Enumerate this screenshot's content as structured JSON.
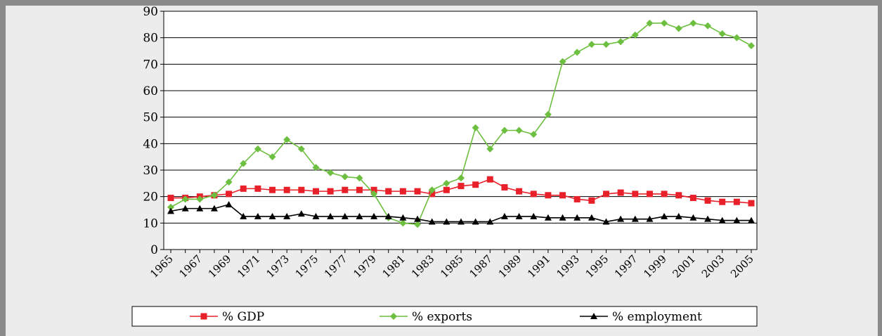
{
  "chart_data": {
    "type": "line",
    "categories": [
      "1965",
      null,
      "1967",
      null,
      "1969",
      null,
      "1971",
      null,
      "1973",
      null,
      "1975",
      null,
      "1977",
      null,
      "1979",
      null,
      "1981",
      null,
      "1983",
      null,
      "1985",
      null,
      "1987",
      null,
      "1989",
      null,
      "1991",
      null,
      "1993",
      null,
      "1995",
      null,
      "1997",
      null,
      "1999",
      null,
      "2001",
      null,
      "2003",
      null,
      "2005"
    ],
    "series": [
      {
        "name": "% GDP",
        "color": "#e8202a",
        "marker": "square",
        "values": [
          19.5,
          19.5,
          20,
          20.5,
          21,
          23,
          23,
          22.5,
          22.5,
          22.5,
          22,
          22,
          22.5,
          22.5,
          22.5,
          22,
          22,
          22,
          21,
          22.5,
          24,
          24.5,
          26.5,
          23.5,
          22,
          21,
          20.5,
          20.5,
          19,
          18.5,
          21,
          21.5,
          21,
          21,
          21,
          20.5,
          19.5,
          18.5,
          18,
          18,
          17.5
        ]
      },
      {
        "name": "% exports",
        "color": "#6dbf3f",
        "marker": "diamond",
        "values": [
          16,
          19,
          19,
          20.5,
          25.5,
          32.5,
          38,
          35,
          41.5,
          38,
          31,
          29,
          27.5,
          27,
          21,
          12,
          10,
          9.5,
          22.5,
          25,
          27,
          46,
          38,
          45,
          45,
          43.5,
          51,
          71,
          74.5,
          77.5,
          77.5,
          78.5,
          81,
          85.5,
          85.5,
          83.5,
          85.5,
          84.5,
          81.5,
          80,
          77
        ]
      },
      {
        "name": "% employment",
        "color": "#000000",
        "marker": "triangle",
        "values": [
          14.5,
          15.5,
          15.5,
          15.5,
          17,
          12.5,
          12.5,
          12.5,
          12.5,
          13.5,
          12.5,
          12.5,
          12.5,
          12.5,
          12.5,
          12.5,
          12,
          11.5,
          10.5,
          10.5,
          10.5,
          10.5,
          10.5,
          12.5,
          12.5,
          12.5,
          12,
          12,
          12,
          12,
          10.5,
          11.5,
          11.5,
          11.5,
          12.5,
          12.5,
          12,
          11.5,
          11,
          11,
          11
        ]
      }
    ],
    "ylim": [
      0,
      90
    ],
    "yticks": [
      0,
      10,
      20,
      30,
      40,
      50,
      60,
      70,
      80,
      90
    ],
    "grid": true,
    "legend": "bottom"
  }
}
